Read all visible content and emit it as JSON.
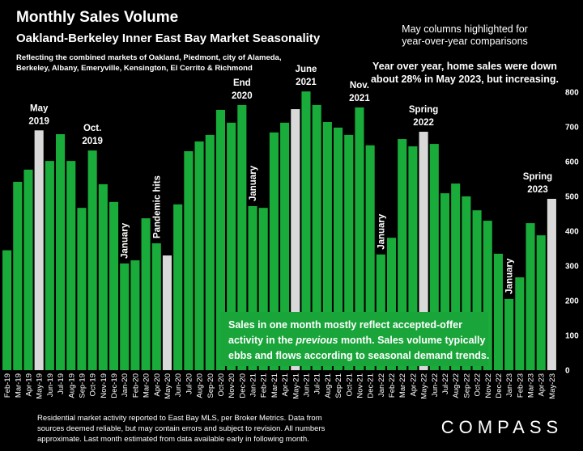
{
  "chart_data": {
    "type": "bar",
    "title": "Monthly Sales Volume",
    "subtitle": "Oakland-Berkeley Inner East Bay Market Seasonality",
    "description": [
      "Reflecting the combined markets of Oakland, Piedmont, city of Alameda,",
      "Berkeley, Albany, Emeryville, Kensington, El Cerrito & Richmond"
    ],
    "note_top": [
      "May columns highlighted for",
      "year-over-year comparisons"
    ],
    "note_yoy": [
      "Year over year, home sales were down",
      "about 28% in May 2023, but increasing."
    ],
    "box_text": [
      [
        "Sales in one month mostly reflect accepted-offer"
      ],
      [
        "activity in the ",
        "previous",
        " month. Sales volume typically"
      ],
      [
        "ebbs and flows according to seasonal demand trends."
      ]
    ],
    "footer": [
      "Residential market activity reported to East Bay MLS, per Broker Metrics. Data from",
      "sources deemed reliable, but may contain errors and subject to revision. All numbers",
      "approximate. Last month estimated from data available early in following month."
    ],
    "brand": "COMPASS",
    "categories": [
      "Feb-19",
      "Mar-19",
      "Apr-19",
      "May-19",
      "Jun-19",
      "Jul-19",
      "Aug-19",
      "Sep-19",
      "Oct-19",
      "Nov-19",
      "Dec-19",
      "Jan-20",
      "Feb-20",
      "Mar-20",
      "Apr-20",
      "May-20",
      "Jun-20",
      "Jul-20",
      "Aug-20",
      "Sep-20",
      "Oct-20",
      "Nov-20",
      "Dec-20",
      "Jan-21",
      "Feb-21",
      "Mar-21",
      "Apr-21",
      "May-21",
      "Jun-21",
      "Jul-21",
      "Aug-21",
      "Sep-21",
      "Oct-21",
      "Nov-21",
      "Dec-21",
      "Jan-22",
      "Feb-22",
      "Mar-22",
      "Apr-22",
      "May-22",
      "Jun-22",
      "Jul-22",
      "Aug-22",
      "Sep-22",
      "Oct-22",
      "Nov-22",
      "Dec-22",
      "Jan-23",
      "Feb-23",
      "Mar-23",
      "Apr-23",
      "May-23"
    ],
    "values": [
      345,
      542,
      577,
      690,
      602,
      679,
      602,
      467,
      632,
      535,
      484,
      307,
      316,
      437,
      365,
      330,
      477,
      630,
      658,
      677,
      749,
      712,
      763,
      472,
      467,
      684,
      712,
      751,
      802,
      763,
      714,
      698,
      677,
      756,
      647,
      333,
      381,
      665,
      644,
      686,
      651,
      509,
      537,
      500,
      460,
      430,
      335,
      205,
      267,
      423,
      388,
      493
    ],
    "colors": [
      "#1aac3a",
      "#1aac3a",
      "#1aac3a",
      "#d9d9d9",
      "#1aac3a",
      "#1aac3a",
      "#1aac3a",
      "#1aac3a",
      "#1aac3a",
      "#1aac3a",
      "#1aac3a",
      "#1aac3a",
      "#1aac3a",
      "#1aac3a",
      "#1aac3a",
      "#d9d9d9",
      "#1aac3a",
      "#1aac3a",
      "#1aac3a",
      "#1aac3a",
      "#1aac3a",
      "#1aac3a",
      "#1aac3a",
      "#1aac3a",
      "#1aac3a",
      "#1aac3a",
      "#1aac3a",
      "#d9d9d9",
      "#1aac3a",
      "#1aac3a",
      "#1aac3a",
      "#1aac3a",
      "#1aac3a",
      "#1aac3a",
      "#1aac3a",
      "#1aac3a",
      "#1aac3a",
      "#1aac3a",
      "#1aac3a",
      "#d9d9d9",
      "#1aac3a",
      "#1aac3a",
      "#1aac3a",
      "#1aac3a",
      "#1aac3a",
      "#1aac3a",
      "#1aac3a",
      "#1aac3a",
      "#1aac3a",
      "#1aac3a",
      "#1aac3a",
      "#d9d9d9"
    ],
    "ylim": [
      0,
      800
    ],
    "yticks": [
      0,
      100,
      200,
      300,
      400,
      500,
      600,
      700,
      800
    ],
    "annotations": [
      {
        "lines": [
          "May",
          "2019"
        ],
        "category": "May-19"
      },
      {
        "lines": [
          "Oct.",
          "2019"
        ],
        "category": "Oct-19"
      },
      {
        "lines": [
          "January"
        ],
        "category": "Jan-20",
        "rotated": true
      },
      {
        "lines": [
          "Pandemic hits"
        ],
        "category": "Apr-20",
        "rotated": true
      },
      {
        "lines": [
          "End",
          "2020"
        ],
        "category": "Dec-20"
      },
      {
        "lines": [
          "January"
        ],
        "category": "Jan-21",
        "rotated": true
      },
      {
        "lines": [
          "June",
          "2021"
        ],
        "category": "Jun-21"
      },
      {
        "lines": [
          "Nov.",
          "2021"
        ],
        "category": "Nov-21"
      },
      {
        "lines": [
          "January"
        ],
        "category": "Jan-22",
        "rotated": true
      },
      {
        "lines": [
          "Spring",
          "2022"
        ],
        "category": "May-22"
      },
      {
        "lines": [
          "January"
        ],
        "category": "Jan-23",
        "rotated": true
      },
      {
        "lines": [
          "Spring",
          "2023"
        ],
        "category": "May-23"
      }
    ]
  }
}
